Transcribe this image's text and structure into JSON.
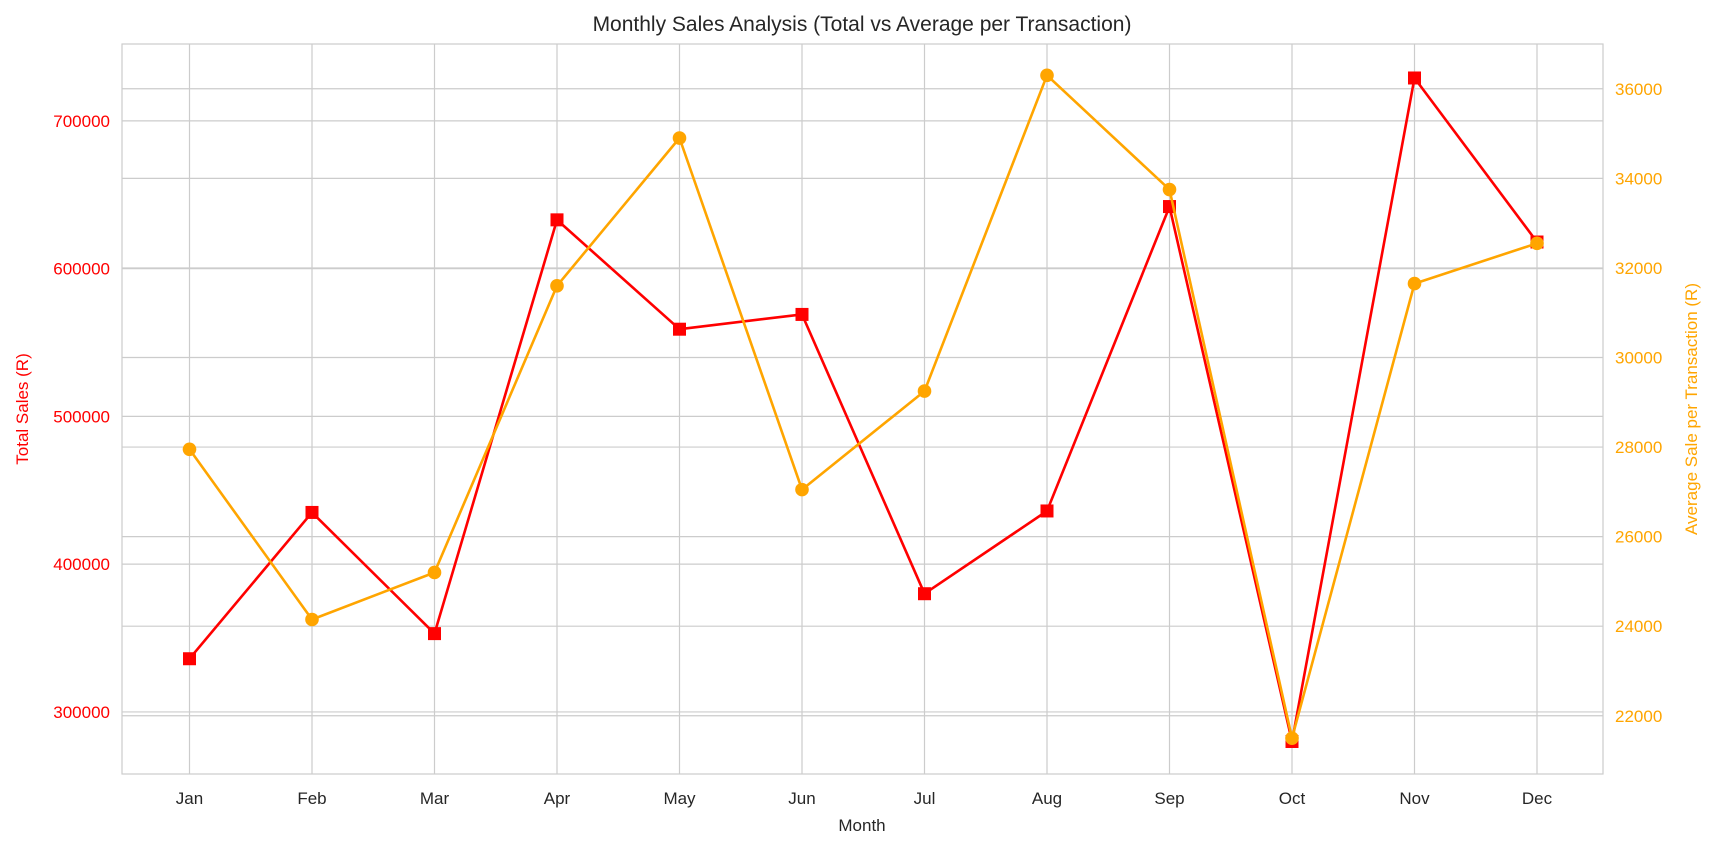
{
  "chart_data": {
    "type": "line",
    "title": "Monthly Sales Analysis (Total vs Average per Transaction)",
    "xlabel": "Month",
    "categories": [
      "Jan",
      "Feb",
      "Mar",
      "Apr",
      "May",
      "Jun",
      "Jul",
      "Aug",
      "Sep",
      "Oct",
      "Nov",
      "Dec"
    ],
    "grid": true,
    "left_axis": {
      "label": "Total Sales (R)",
      "color": "#ff0000",
      "range": [
        258000,
        752000
      ],
      "ticks": [
        300000,
        400000,
        500000,
        600000,
        700000
      ]
    },
    "right_axis": {
      "label": "Average Sale per Transaction (R)",
      "color": "#ffa500",
      "range": [
        20700,
        37000
      ],
      "ticks": [
        22000,
        24000,
        26000,
        28000,
        30000,
        32000,
        34000,
        36000
      ]
    },
    "series": [
      {
        "axis": "left",
        "color": "#ff0000",
        "marker": "square",
        "values": [
          336000,
          435000,
          353000,
          633000,
          559000,
          569000,
          380000,
          436000,
          642000,
          280000,
          729000,
          618000
        ]
      },
      {
        "axis": "right",
        "color": "#ffa500",
        "marker": "circle",
        "values": [
          27950,
          24150,
          25200,
          31600,
          34900,
          27050,
          29250,
          36300,
          33750,
          21500,
          31650,
          32550
        ]
      }
    ]
  }
}
